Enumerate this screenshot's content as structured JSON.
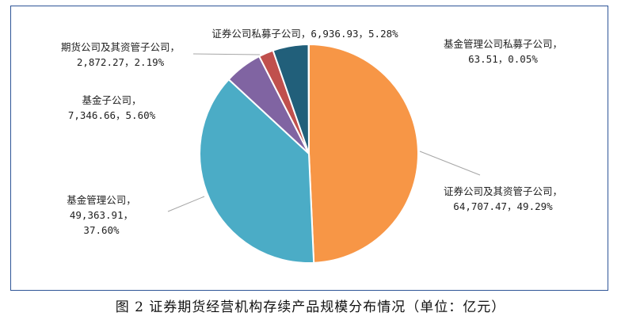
{
  "caption": "图 2   证券期货经营机构存续产品规模分布情况（单位：亿元）",
  "chart_data": {
    "type": "pie",
    "unit": "亿元",
    "slices": [
      {
        "name": "证券公司及其资管子公司",
        "value": 64707.47,
        "value_label": "64,707.47",
        "percent": "49.29%",
        "color": "#f79646"
      },
      {
        "name": "基金管理公司",
        "value": 49363.91,
        "value_label": "49,363.91",
        "percent": "37.60%",
        "color": "#4bacc6"
      },
      {
        "name": "基金子公司",
        "value": 7346.66,
        "value_label": "7,346.66",
        "percent": "5.60%",
        "color": "#8064a2"
      },
      {
        "name": "期货公司及其资管子公司",
        "value": 2872.27,
        "value_label": "2,872.27",
        "percent": "2.19%",
        "color": "#c0504d"
      },
      {
        "name": "证券公司私募子公司",
        "value": 6936.93,
        "value_label": "6,936.93",
        "percent": "5.28%",
        "color": "#215f7a"
      },
      {
        "name": "基金管理公司私募子公司",
        "value": 63.51,
        "value_label": "63.51",
        "percent": "0.05%",
        "color": "#1f3864"
      }
    ]
  }
}
